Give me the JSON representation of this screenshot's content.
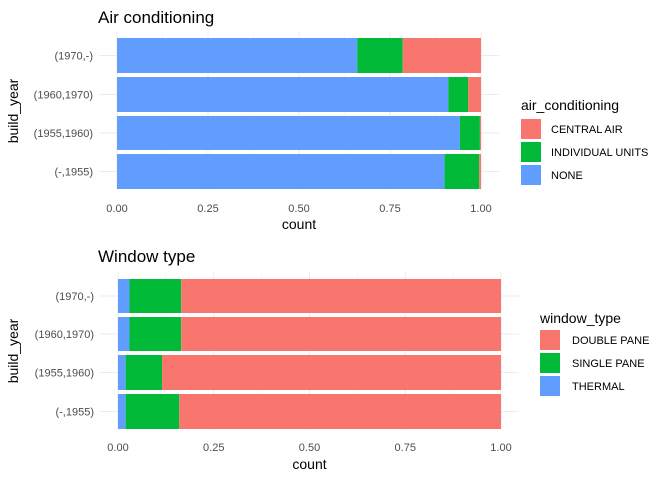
{
  "chart_data": [
    {
      "type": "bar",
      "orientation": "horizontal",
      "stacked": "proportion",
      "title": "Air conditioning",
      "xlabel": "count",
      "ylabel": "build_year",
      "xlim": [
        0,
        1
      ],
      "x_ticks": [
        "0.00",
        "0.25",
        "0.50",
        "0.75",
        "1.00"
      ],
      "categories": [
        "(1970,-)",
        "(1960,1970)",
        "(1955,1960)",
        "(-,1955)"
      ],
      "legend_title": "air_conditioning",
      "legend_position": "right",
      "grid": true,
      "series": [
        {
          "name": "CENTRAL AIR",
          "color": "#F8766D",
          "values": [
            0.215,
            0.035,
            0.003,
            0.005
          ]
        },
        {
          "name": "INDIVIDUAL UNITS",
          "color": "#00BA38",
          "values": [
            0.125,
            0.055,
            0.055,
            0.095
          ]
        },
        {
          "name": "NONE",
          "color": "#619CFF",
          "values": [
            0.66,
            0.91,
            0.942,
            0.9
          ]
        }
      ]
    },
    {
      "type": "bar",
      "orientation": "horizontal",
      "stacked": "proportion",
      "title": "Window type",
      "xlabel": "count",
      "ylabel": "build_year",
      "xlim": [
        0,
        1
      ],
      "x_ticks": [
        "0.00",
        "0.25",
        "0.50",
        "0.75",
        "1.00"
      ],
      "categories": [
        "(1970,-)",
        "(1960,1970)",
        "(1955,1960)",
        "(-,1955)"
      ],
      "legend_title": "window_type",
      "legend_position": "right",
      "grid": true,
      "series": [
        {
          "name": "DOUBLE PANE",
          "color": "#F8766D",
          "values": [
            0.835,
            0.835,
            0.885,
            0.84
          ]
        },
        {
          "name": "SINGLE PANE",
          "color": "#00BA38",
          "values": [
            0.135,
            0.135,
            0.095,
            0.14
          ]
        },
        {
          "name": "THERMAL",
          "color": "#619CFF",
          "values": [
            0.03,
            0.03,
            0.02,
            0.02
          ]
        }
      ]
    }
  ]
}
